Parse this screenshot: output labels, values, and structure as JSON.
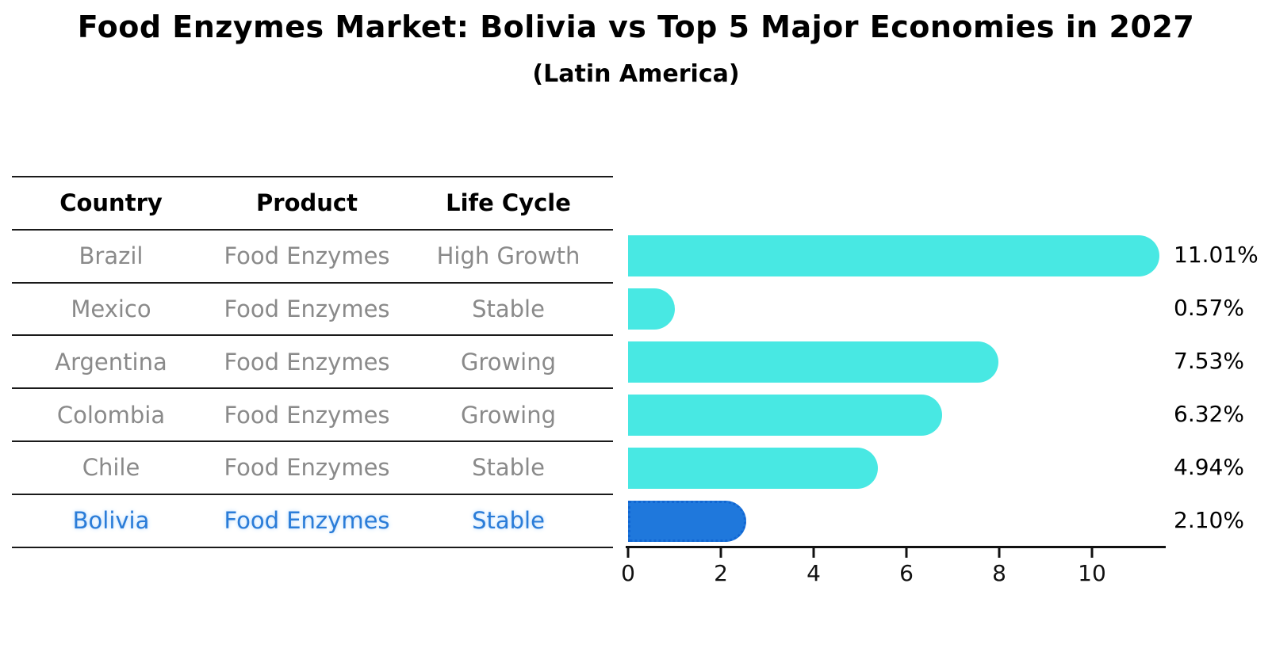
{
  "chart_data": {
    "type": "bar",
    "orientation": "horizontal",
    "title": "Food Enzymes Market: Bolivia vs Top 5 Major Economies in 2027",
    "subtitle": "(Latin America)",
    "categories": [
      "Brazil",
      "Mexico",
      "Argentina",
      "Colombia",
      "Chile",
      "Bolivia"
    ],
    "values": [
      11.01,
      0.57,
      7.53,
      6.32,
      4.94,
      2.1
    ],
    "value_labels": [
      "11.01%",
      "0.57%",
      "7.53%",
      "6.32%",
      "4.94%",
      "2.10%"
    ],
    "x_ticks": [
      0,
      2,
      4,
      6,
      8,
      10
    ],
    "xlim": [
      0,
      11.6
    ],
    "grid": false,
    "legend": "none",
    "bar_color": "#48E8E3",
    "highlight_index": 5,
    "highlight_bar_color": "#1F78DC",
    "highlight_border_color": "#1166D2",
    "highlight_text_color": "#2A7CD8",
    "axis_color": "#111111",
    "value_label_color": "#000000",
    "table_text_color": "#8A8A8A"
  },
  "table": {
    "headers": [
      "Country",
      "Product",
      "Life Cycle"
    ],
    "rows": [
      {
        "country": "Brazil",
        "product": "Food Enzymes",
        "life_cycle": "High Growth",
        "highlighted": false
      },
      {
        "country": "Mexico",
        "product": "Food Enzymes",
        "life_cycle": "Stable",
        "highlighted": false
      },
      {
        "country": "Argentina",
        "product": "Food Enzymes",
        "life_cycle": "Growing",
        "highlighted": false
      },
      {
        "country": "Colombia",
        "product": "Food Enzymes",
        "life_cycle": "Growing",
        "highlighted": false
      },
      {
        "country": "Chile",
        "product": "Food Enzymes",
        "life_cycle": "Stable",
        "highlighted": false
      },
      {
        "country": "Bolivia",
        "product": "Food Enzymes",
        "life_cycle": "Stable",
        "highlighted": true
      }
    ]
  }
}
